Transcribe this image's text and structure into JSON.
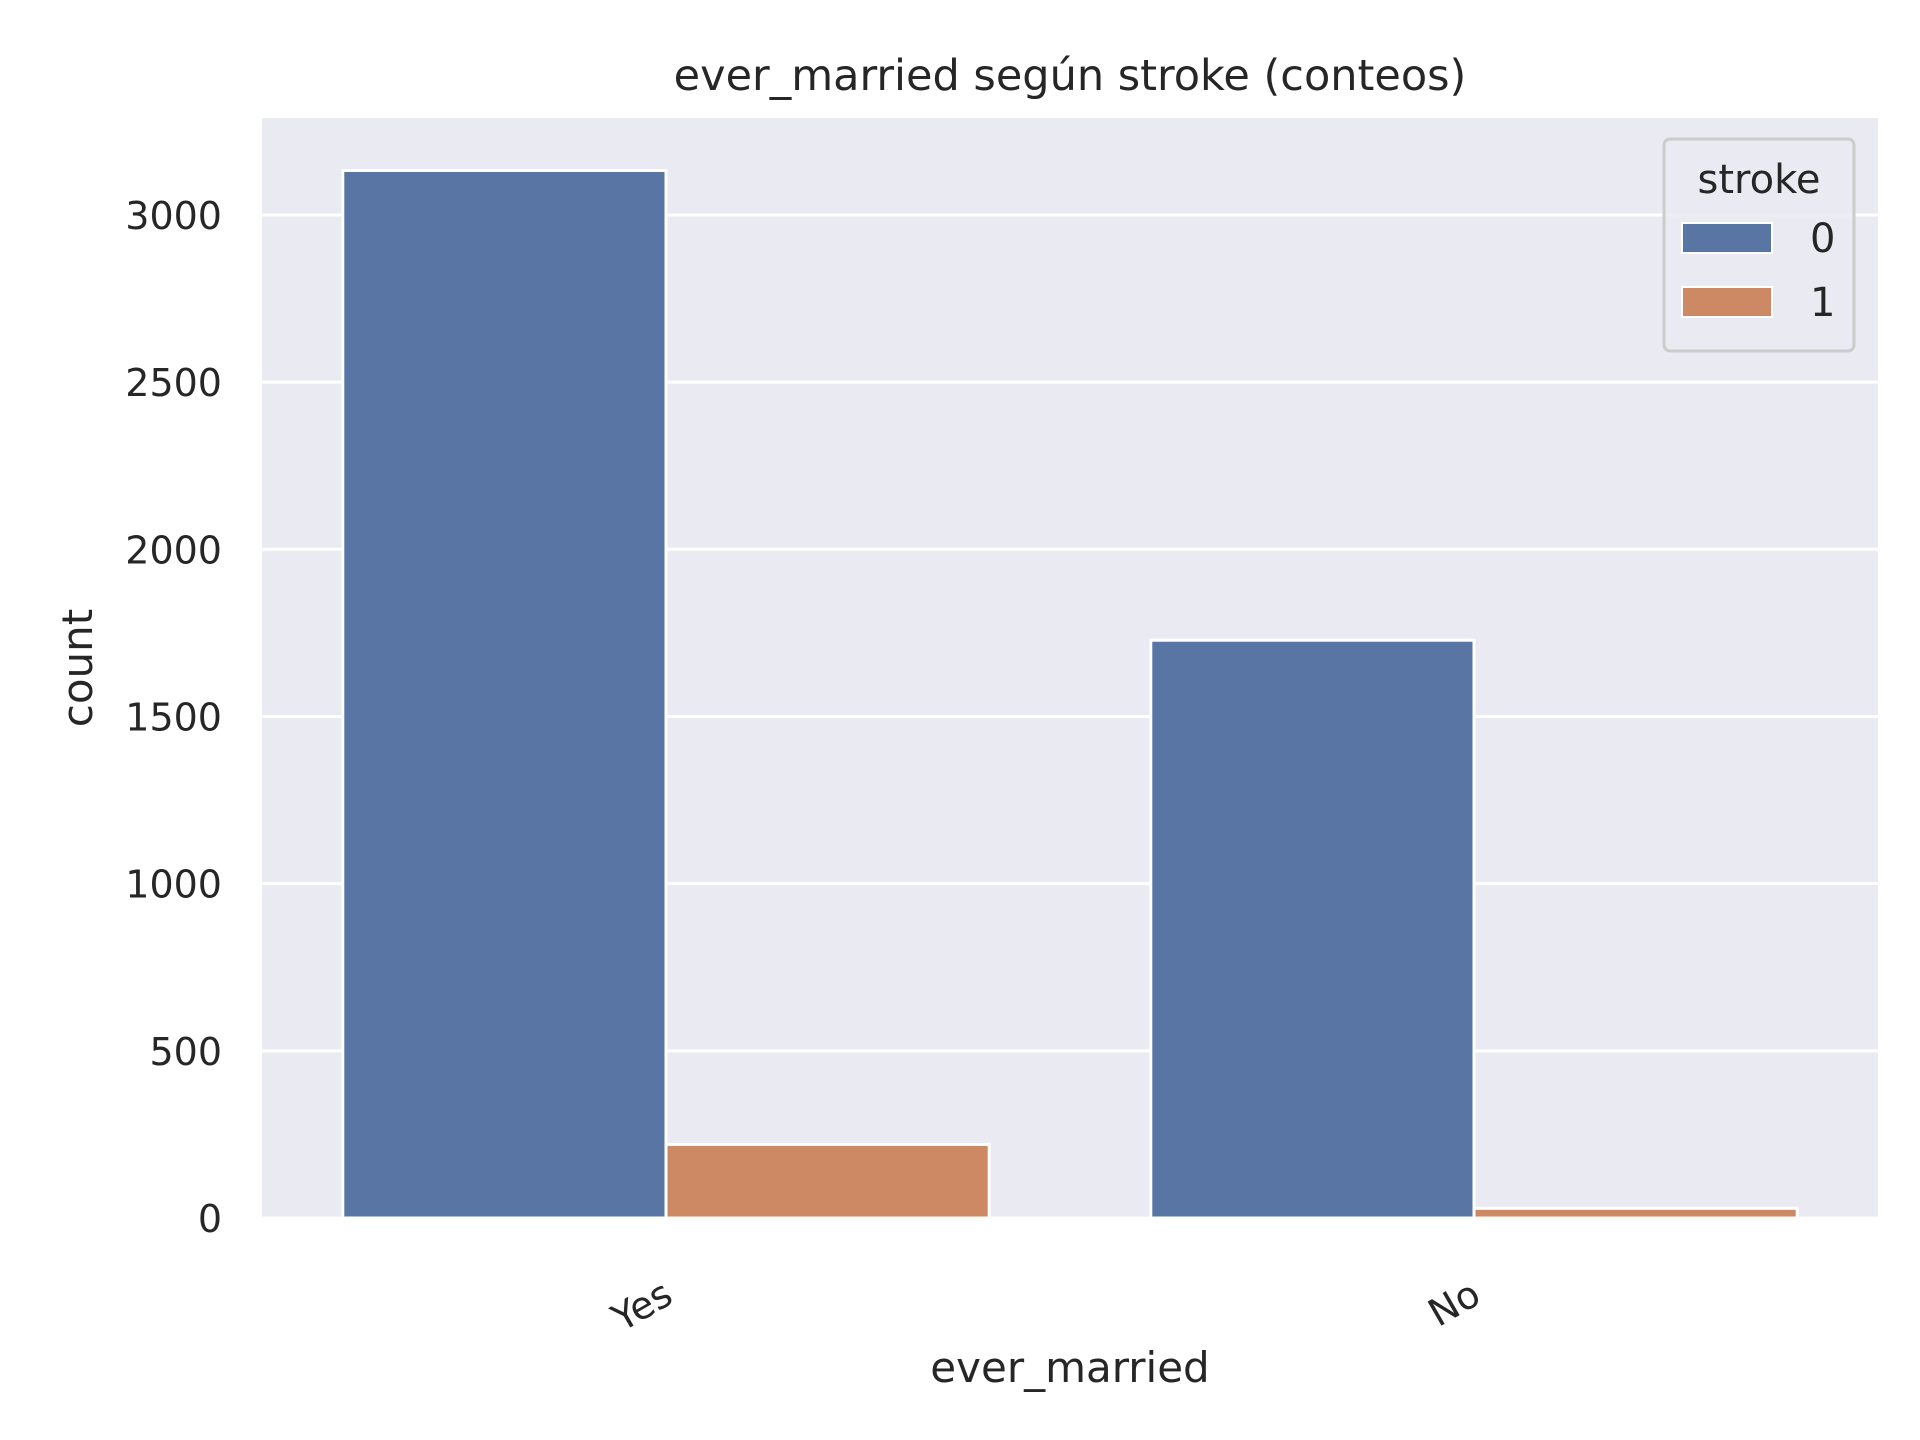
{
  "chart_data": {
    "type": "bar",
    "title": "ever_married según stroke (conteos)",
    "xlabel": "ever_married",
    "ylabel": "count",
    "categories": [
      "Yes",
      "No"
    ],
    "series": [
      {
        "name": "0",
        "values": [
          3133,
          1728
        ]
      },
      {
        "name": "1",
        "values": [
          220,
          29
        ]
      }
    ],
    "ylim": [
      0,
      3290
    ],
    "yticks": [
      0,
      500,
      1000,
      1500,
      2000,
      2500,
      3000
    ],
    "grid": true,
    "legend": {
      "title": "stroke",
      "placement": "top-right"
    },
    "colors": {
      "series": [
        "#5975a4",
        "#cc8963"
      ],
      "plot_background": "#eaeaf2",
      "grid": "#ffffff",
      "text": "#262626"
    }
  }
}
